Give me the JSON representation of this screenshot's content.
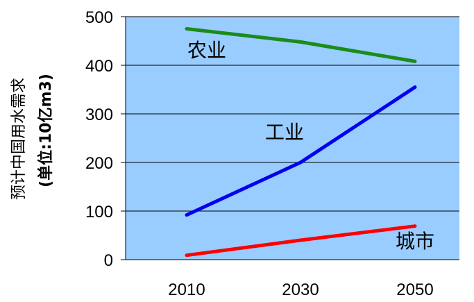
{
  "chart_data": {
    "type": "line",
    "ylabel_line1": "预计中国用水需求",
    "ylabel_line2": "(单位:10亿m3)",
    "categories": [
      "2010",
      "2030",
      "2050"
    ],
    "ylim": [
      0,
      500
    ],
    "yticks": [
      "0",
      "100",
      "200",
      "300",
      "400",
      "500"
    ],
    "grid": true,
    "background_color": "#99ccff",
    "series": [
      {
        "name": "农业",
        "color": "#1a8c1a",
        "values": [
          475,
          448,
          408
        ]
      },
      {
        "name": "工业",
        "color": "#0000ee",
        "values": [
          92,
          200,
          355
        ]
      },
      {
        "name": "城市",
        "color": "#ff0000",
        "values": [
          9,
          40,
          69
        ]
      }
    ]
  }
}
